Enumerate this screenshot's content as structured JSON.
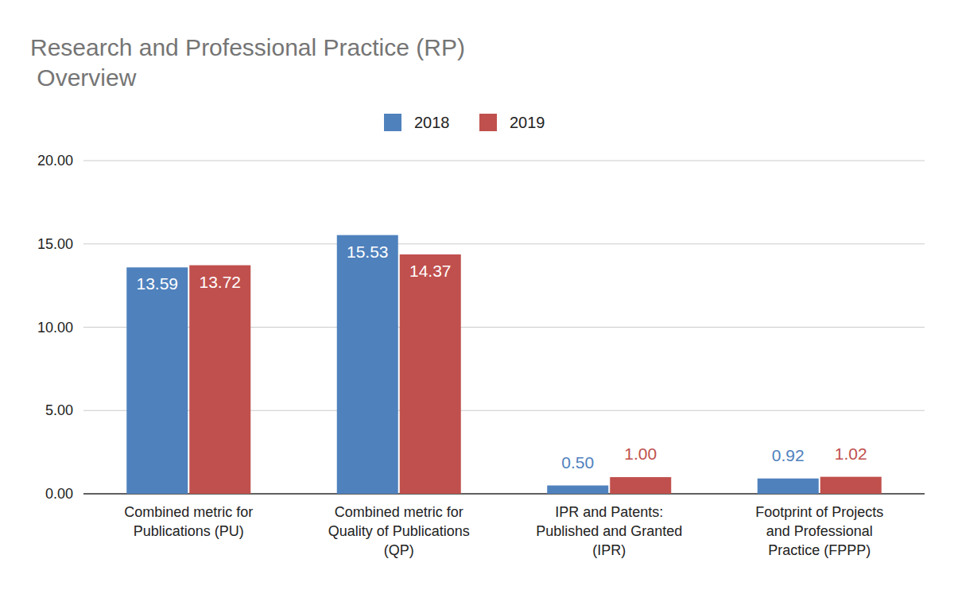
{
  "chart_data": {
    "type": "bar",
    "title": "Research and Professional Practice (RP)\n Overview",
    "categories": [
      "Combined metric for\nPublications (PU)",
      "Combined metric for\nQuality of Publications\n(QP)",
      "IPR and Patents:\nPublished and Granted\n(IPR)",
      "Footprint of Projects\nand Professional\nPractice (FPPP)"
    ],
    "series": [
      {
        "name": "2018",
        "color": "#4f81bd",
        "values": [
          13.59,
          15.53,
          0.5,
          0.92
        ],
        "value_labels": [
          "13.59",
          "15.53",
          "0.50",
          "0.92"
        ]
      },
      {
        "name": "2019",
        "color": "#c0504d",
        "values": [
          13.72,
          14.37,
          1.0,
          1.02
        ],
        "value_labels": [
          "13.72",
          "14.37",
          "1.00",
          "1.02"
        ]
      }
    ],
    "ylim": [
      0,
      20
    ],
    "yticks": [
      {
        "value": 0,
        "label": "0.00"
      },
      {
        "value": 5,
        "label": "5.00"
      },
      {
        "value": 10,
        "label": "10.00"
      },
      {
        "value": 15,
        "label": "15.00"
      },
      {
        "value": 20,
        "label": "20.00"
      }
    ],
    "grid": true,
    "legend": "top",
    "data_labels": true
  }
}
